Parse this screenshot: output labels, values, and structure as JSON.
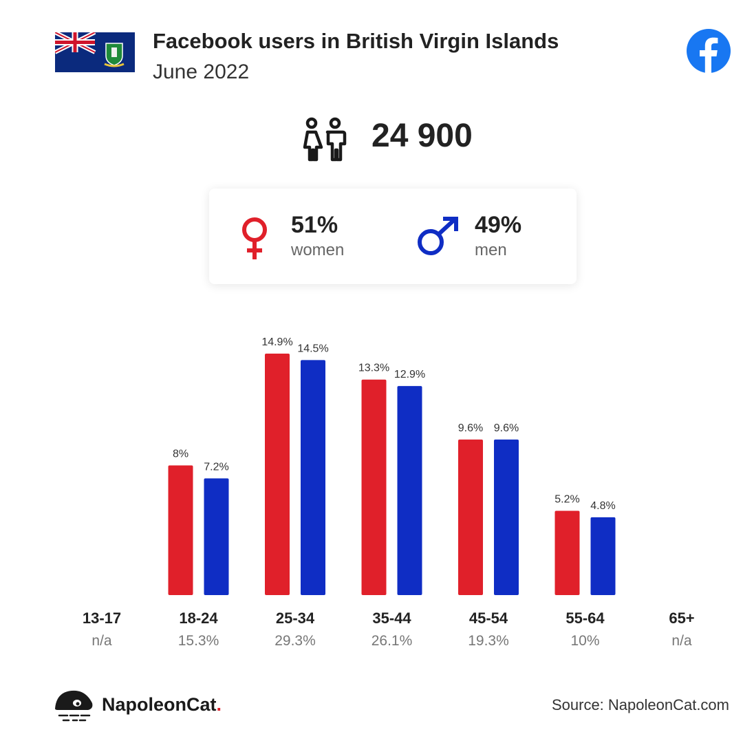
{
  "header": {
    "title": "Facebook users in British Virgin Islands",
    "subtitle": "June 2022"
  },
  "summary": {
    "total_users": "24 900",
    "women_pct": "51%",
    "women_label": "women",
    "men_pct": "49%",
    "men_label": "men"
  },
  "colors": {
    "women": "#e0202a",
    "men": "#0f2dc4",
    "facebook": "#1877f2"
  },
  "icons": {
    "flag": "british-virgin-islands-flag-icon",
    "brand": "facebook-logo-icon",
    "people": "people-icon",
    "female": "female-symbol-icon",
    "male": "male-symbol-icon",
    "logo": "napoleoncat-logo-icon"
  },
  "chart_data": {
    "type": "bar",
    "categories": [
      "13-17",
      "18-24",
      "25-34",
      "35-44",
      "45-54",
      "55-64",
      "65+"
    ],
    "category_totals": [
      "n/a",
      "15.3%",
      "29.3%",
      "26.1%",
      "19.3%",
      "10%",
      "n/a"
    ],
    "series": [
      {
        "values": [
          null,
          8,
          14.9,
          13.3,
          9.6,
          5.2,
          null
        ],
        "labels": [
          "",
          "8%",
          "14.9%",
          "13.3%",
          "9.6%",
          "5.2%",
          ""
        ]
      },
      {
        "values": [
          null,
          7.2,
          14.5,
          12.9,
          9.6,
          4.8,
          null
        ],
        "labels": [
          "",
          "7.2%",
          "14.5%",
          "12.9%",
          "9.6%",
          "4.8%",
          ""
        ]
      }
    ],
    "ylim": [
      0,
      14.9
    ],
    "grid": false
  },
  "footer": {
    "brand_name": "NapoleonCat",
    "brand_dot": ".",
    "source": "Source: NapoleonCat.com"
  }
}
